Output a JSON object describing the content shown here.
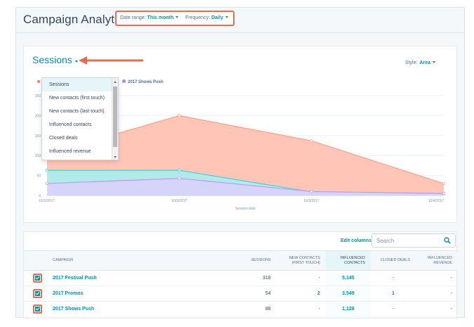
{
  "header": {
    "title": "Campaign Analytics",
    "date_range_label": "Date range:",
    "date_range_value": "This month",
    "frequency_label": "Frequency:",
    "frequency_value": "Daily"
  },
  "chart_card": {
    "metric_label": "Sessions",
    "style_label": "Style:",
    "style_value": "Area",
    "legend_item": "2017 Shows Push",
    "dropdown_items": [
      "Sessions",
      "New contacts (first touch)",
      "New contacts (last touch)",
      "Influenced contacts",
      "Closed deals",
      "Influenced revenue"
    ]
  },
  "chart_data": {
    "type": "area",
    "xlabel": "Session date",
    "ylabel": "",
    "x": [
      "10/1/2017",
      "10/2/2017",
      "10/3/2017",
      "10/4/2017"
    ],
    "ylim": [
      0,
      250
    ],
    "yticks": [
      "0",
      "50",
      "100",
      "150",
      "200",
      "250"
    ],
    "series": [
      {
        "name": "",
        "color": "#ffbcac",
        "values": [
          104,
          200,
          137,
          30
        ]
      },
      {
        "name": "",
        "color": "#a7eef2",
        "values": [
          63,
          63,
          9,
          5
        ]
      },
      {
        "name": "2017 Shows Push",
        "color": "#dcd0fa",
        "values": [
          30,
          43,
          10,
          5
        ]
      }
    ]
  },
  "table": {
    "edit_columns": "Edit columns",
    "search_placeholder": "Search",
    "columns": {
      "campaign": "Campaign",
      "sessions": "Sessions",
      "new_contacts": "New contacts (first touch)",
      "influenced": "Influenced contacts",
      "closed_deals": "Closed deals",
      "revenue": "Influenced revenue"
    },
    "rows": [
      {
        "campaign": "2017 Festival Push",
        "sessions": "318",
        "new_contacts": "-",
        "influenced": "5,145",
        "closed_deals": "-",
        "revenue": "-"
      },
      {
        "campaign": "2017 Promos",
        "sessions": "54",
        "new_contacts": "2",
        "influenced": "3,549",
        "closed_deals": "1",
        "revenue": "-"
      },
      {
        "campaign": "2017 Shows Push",
        "sessions": "88",
        "new_contacts": "-",
        "influenced": "1,128",
        "closed_deals": "-",
        "revenue": "-"
      }
    ]
  },
  "colors": {
    "accent": "#0091ae",
    "highlight": "#e66e50"
  }
}
